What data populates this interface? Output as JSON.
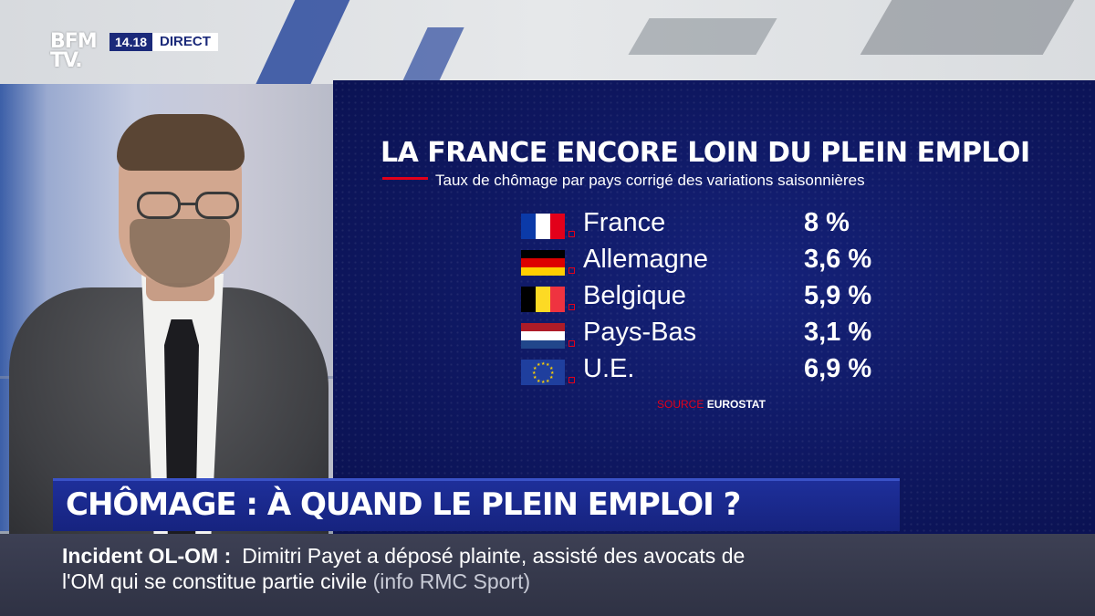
{
  "channel": {
    "logo": "BFM TV.",
    "time": "14.18",
    "live_label": "DIRECT"
  },
  "infographic": {
    "title": "LA FRANCE ENCORE LOIN DU PLEIN EMPLOI",
    "subtitle": "Taux de chômage par pays corrigé des variations saisonnières",
    "rows": [
      {
        "country": "France",
        "value": "8 %",
        "flag": "france-flag-icon"
      },
      {
        "country": "Allemagne",
        "value": "3,6 %",
        "flag": "germany-flag-icon"
      },
      {
        "country": "Belgique",
        "value": "5,9 %",
        "flag": "belgium-flag-icon"
      },
      {
        "country": "Pays-Bas",
        "value": "3,1 %",
        "flag": "netherlands-flag-icon"
      },
      {
        "country": "U.E.",
        "value": "6,9 %",
        "flag": "eu-flag-icon"
      }
    ],
    "source_label": "SOURCE",
    "source_value": "EUROSTAT"
  },
  "headline": {
    "text": "CHÔMAGE : À QUAND LE PLEIN EMPLOI ?"
  },
  "ticker": {
    "label": "Incident OL-OM :",
    "text_line1": "Dimitri Payet a déposé plainte, assisté des avocats de",
    "text_line2": "l'OM qui se constitue partie civile",
    "credit": "(info RMC Sport)"
  },
  "colors": {
    "panel_blue": "#0e1760",
    "accent_red": "#e2001a",
    "headline_blue": "#1e2f9a"
  }
}
